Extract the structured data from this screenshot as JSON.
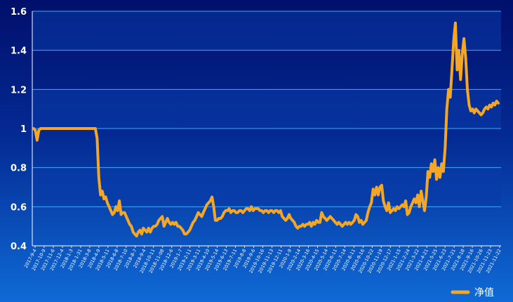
{
  "chart_data": {
    "type": "line",
    "title": "",
    "xlabel": "",
    "ylabel": "",
    "ylim": [
      0.4,
      1.6
    ],
    "yticks": [
      "0.4",
      "0.6",
      "0.8",
      "1",
      "1.2",
      "1.4",
      "1.6"
    ],
    "grid": true,
    "legend_position": "bottom-right",
    "x_tick_labels": [
      "2017-9-4",
      "2017-10-9",
      "2017-11-6",
      "2017-12-4",
      "2018-1-3",
      "2018-1-31",
      "2018-3-8",
      "2018-4-9",
      "2018-5-11",
      "2018-6-8",
      "2018-7-10",
      "2018-8-7",
      "2018-9-4",
      "2018-10-11",
      "2018-11-08",
      "2018-12-6",
      "2019-1-7",
      "2019-2-11",
      "2019-3-11",
      "2019-4-10",
      "2019-5-14",
      "2019-6-13",
      "2019-7-11",
      "2019-8-8",
      "2019-9-6",
      "2019-10-16",
      "2019-11-13",
      "2019-12-11",
      "2020-1-9",
      "2020-2-14",
      "2020-3-16",
      "2020-4-15",
      "2020-5-14",
      "2020-6-11",
      "2020-7-14",
      "2020-8-11",
      "2020-9-16",
      "2020-10-22",
      "2020-11-19",
      "2020-12-17",
      "2021-1-15",
      "2021-2-24",
      "2021-3-22",
      "2021-4-21",
      "2021-5-25",
      "2021-6-23",
      "2021-7-21",
      "2021-8-18",
      "2021-9-16",
      "2021-10-26",
      "2021-11-23",
      "2021-11-22"
    ],
    "series": [
      {
        "name": "净值",
        "color": "#f5a623",
        "values": [
          1.0,
          0.99,
          0.94,
          0.99,
          1.0,
          1.0,
          1.0,
          1.0,
          1.0,
          1.0,
          1.0,
          1.0,
          1.0,
          1.0,
          1.0,
          1.0,
          1.0,
          1.0,
          1.0,
          1.0,
          1.0,
          1.0,
          1.0,
          1.0,
          1.0,
          1.0,
          1.0,
          1.0,
          1.0,
          1.0,
          1.0,
          1.0,
          1.0,
          1.0,
          1.0,
          1.0,
          1.0,
          0.95,
          0.75,
          0.66,
          0.68,
          0.64,
          0.65,
          0.62,
          0.6,
          0.58,
          0.56,
          0.57,
          0.6,
          0.58,
          0.63,
          0.56,
          0.57,
          0.57,
          0.55,
          0.53,
          0.51,
          0.5,
          0.47,
          0.46,
          0.45,
          0.47,
          0.48,
          0.46,
          0.49,
          0.48,
          0.47,
          0.49,
          0.47,
          0.49,
          0.5,
          0.5,
          0.51,
          0.53,
          0.54,
          0.55,
          0.5,
          0.52,
          0.54,
          0.52,
          0.51,
          0.52,
          0.51,
          0.52,
          0.5,
          0.5,
          0.49,
          0.48,
          0.46,
          0.46,
          0.47,
          0.48,
          0.5,
          0.52,
          0.53,
          0.55,
          0.57,
          0.56,
          0.55,
          0.57,
          0.59,
          0.61,
          0.62,
          0.63,
          0.65,
          0.6,
          0.53,
          0.53,
          0.54,
          0.54,
          0.55,
          0.57,
          0.58,
          0.58,
          0.59,
          0.57,
          0.58,
          0.58,
          0.57,
          0.57,
          0.58,
          0.58,
          0.57,
          0.58,
          0.59,
          0.59,
          0.58,
          0.6,
          0.58,
          0.59,
          0.59,
          0.59,
          0.58,
          0.58,
          0.57,
          0.58,
          0.58,
          0.57,
          0.58,
          0.58,
          0.57,
          0.58,
          0.58,
          0.57,
          0.58,
          0.55,
          0.54,
          0.53,
          0.54,
          0.56,
          0.54,
          0.53,
          0.52,
          0.5,
          0.49,
          0.5,
          0.5,
          0.51,
          0.5,
          0.51,
          0.51,
          0.52,
          0.5,
          0.52,
          0.51,
          0.53,
          0.52,
          0.52,
          0.57,
          0.55,
          0.54,
          0.53,
          0.54,
          0.55,
          0.54,
          0.53,
          0.52,
          0.51,
          0.52,
          0.51,
          0.5,
          0.51,
          0.52,
          0.51,
          0.52,
          0.51,
          0.52,
          0.53,
          0.56,
          0.55,
          0.52,
          0.53,
          0.51,
          0.52,
          0.53,
          0.57,
          0.6,
          0.62,
          0.69,
          0.66,
          0.7,
          0.66,
          0.7,
          0.71,
          0.63,
          0.6,
          0.58,
          0.62,
          0.57,
          0.58,
          0.59,
          0.58,
          0.6,
          0.59,
          0.6,
          0.61,
          0.6,
          0.63,
          0.56,
          0.57,
          0.6,
          0.62,
          0.64,
          0.62,
          0.66,
          0.6,
          0.68,
          0.63,
          0.58,
          0.65,
          0.78,
          0.75,
          0.82,
          0.78,
          0.84,
          0.74,
          0.8,
          0.75,
          0.82,
          0.78,
          0.9,
          1.1,
          1.2,
          1.16,
          1.3,
          1.45,
          1.54,
          1.3,
          1.4,
          1.25,
          1.38,
          1.46,
          1.36,
          1.2,
          1.12,
          1.09,
          1.1,
          1.08,
          1.1,
          1.09,
          1.08,
          1.07,
          1.08,
          1.1,
          1.11,
          1.1,
          1.12,
          1.11,
          1.13,
          1.12,
          1.14,
          1.13
        ]
      }
    ]
  }
}
